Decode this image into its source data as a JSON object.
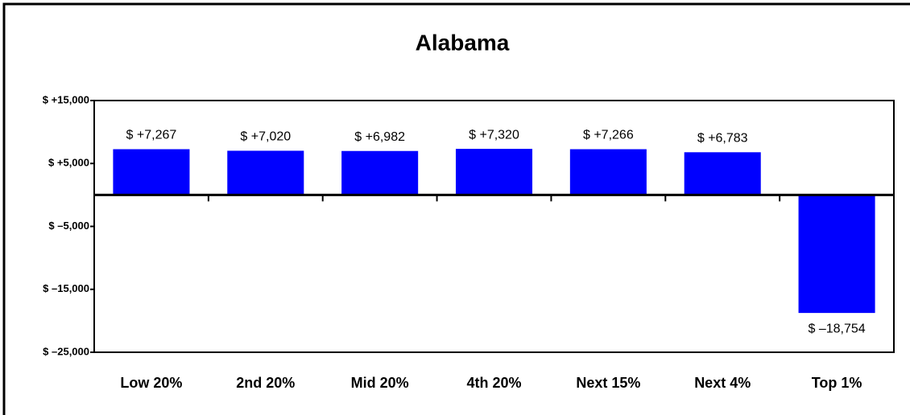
{
  "chart_data": {
    "type": "bar",
    "title": "Alabama",
    "categories": [
      "Low 20%",
      "2nd 20%",
      "Mid 20%",
      "4th 20%",
      "Next 15%",
      "Next 4%",
      "Top 1%"
    ],
    "values": [
      7267,
      7020,
      6982,
      7320,
      7266,
      6783,
      -18754
    ],
    "value_labels": [
      "$ +7,267",
      "$ +7,020",
      "$ +6,982",
      "$ +7,320",
      "$ +7,266",
      "$ +6,783",
      "$ –18,754"
    ],
    "color": "#0000ff",
    "ylim": [
      -25000,
      15000
    ],
    "yticks": [
      {
        "value": -25000,
        "label": "$ –25,000"
      },
      {
        "value": -15000,
        "label": "$ –15,000"
      },
      {
        "value": -5000,
        "label": "$ –5,000"
      },
      {
        "value": 5000,
        "label": "$ +5,000"
      },
      {
        "value": 15000,
        "label": "$ +15,000"
      }
    ],
    "grid": false
  }
}
